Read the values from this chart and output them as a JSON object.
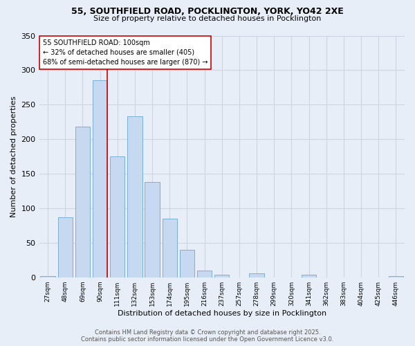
{
  "title_line1": "55, SOUTHFIELD ROAD, POCKLINGTON, YORK, YO42 2XE",
  "title_line2": "Size of property relative to detached houses in Pocklington",
  "xlabel": "Distribution of detached houses by size in Pocklington",
  "ylabel": "Number of detached properties",
  "categories": [
    "27sqm",
    "48sqm",
    "69sqm",
    "90sqm",
    "111sqm",
    "132sqm",
    "153sqm",
    "174sqm",
    "195sqm",
    "216sqm",
    "237sqm",
    "257sqm",
    "278sqm",
    "299sqm",
    "320sqm",
    "341sqm",
    "362sqm",
    "383sqm",
    "404sqm",
    "425sqm",
    "446sqm"
  ],
  "values": [
    2,
    87,
    218,
    285,
    175,
    233,
    138,
    85,
    40,
    10,
    4,
    0,
    6,
    0,
    0,
    4,
    0,
    0,
    0,
    0,
    2
  ],
  "bar_color": "#c6d9f1",
  "bar_edge_color": "#7bafd4",
  "annotation_label": "55 SOUTHFIELD ROAD: 100sqm\n← 32% of detached houses are smaller (405)\n68% of semi-detached houses are larger (870) →",
  "vline_color": "#cc0000",
  "vline_x": 3.43,
  "ylim": [
    0,
    350
  ],
  "yticks": [
    0,
    50,
    100,
    150,
    200,
    250,
    300,
    350
  ],
  "grid_color": "#cdd5e3",
  "background_color": "#e8eef8",
  "footer": "Contains HM Land Registry data © Crown copyright and database right 2025.\nContains public sector information licensed under the Open Government Licence v3.0.",
  "annotation_box_facecolor": "#ffffff",
  "annotation_box_edgecolor": "#cc0000"
}
